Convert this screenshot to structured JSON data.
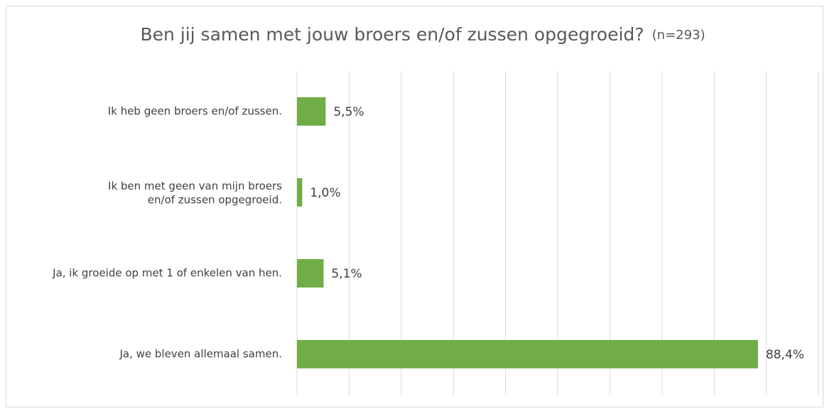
{
  "chart_data": {
    "type": "bar",
    "orientation": "horizontal",
    "title": "Ben jij samen met jouw broers en/of zussen opgegroeid?",
    "subtitle": "(n=293)",
    "categories": [
      "Ik heb geen broers en/of zussen.",
      "Ik ben met geen van mijn broers en/of zussen opgegroeid.",
      "Ja, ik groeide op met 1 of enkelen van hen.",
      "Ja, we bleven allemaal samen."
    ],
    "values": [
      5.5,
      1.0,
      5.1,
      88.4
    ],
    "value_labels": [
      "5,5%",
      "1,0%",
      "5,1%",
      "88,4%"
    ],
    "color": "#70ad47",
    "xlim": [
      0,
      100
    ],
    "xticks": [
      0,
      10,
      20,
      30,
      40,
      50,
      60,
      70,
      80,
      90,
      100
    ],
    "grid": true
  }
}
